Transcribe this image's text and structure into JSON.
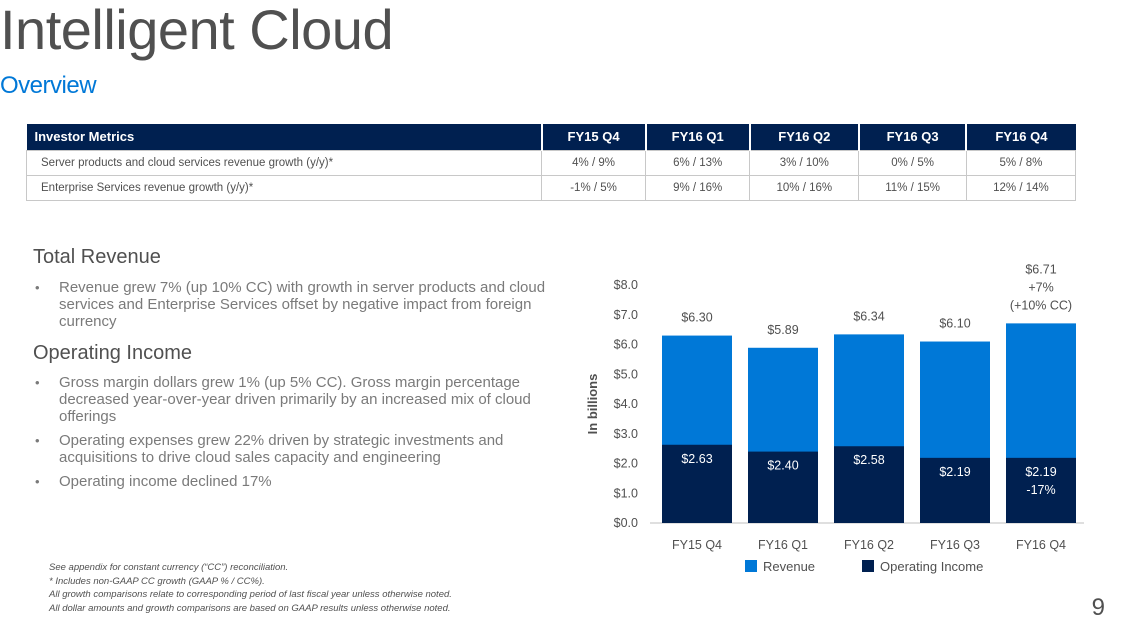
{
  "slide": {
    "title": "Intelligent Cloud",
    "subtitle": "Overview",
    "page_number": "9"
  },
  "metrics_table": {
    "headers": [
      "Investor Metrics",
      "FY15 Q4",
      "FY16 Q1",
      "FY16 Q2",
      "FY16 Q3",
      "FY16 Q4"
    ],
    "rows": [
      [
        "Server products and cloud services revenue growth (y/y)*",
        "4% / 9%",
        "6% / 13%",
        "3% / 10%",
        "0% / 5%",
        "5% / 8%"
      ],
      [
        "Enterprise Services revenue growth (y/y)*",
        "-1% / 5%",
        "9% / 16%",
        "10% / 16%",
        "11% / 15%",
        "12% / 14%"
      ]
    ]
  },
  "sections": [
    {
      "heading": "Total Revenue",
      "bullets": [
        "Revenue grew 7% (up 10% CC) with growth in server products and cloud services and Enterprise Services offset by negative impact from foreign currency"
      ]
    },
    {
      "heading": "Operating Income",
      "bullets": [
        "Gross margin dollars grew 1% (up 5% CC). Gross margin percentage decreased year-over-year driven primarily by an increased mix of cloud offerings",
        "Operating expenses grew 22% driven by strategic investments and acquisitions to drive cloud sales capacity and engineering",
        "Operating income declined 17%"
      ]
    }
  ],
  "footnotes": [
    "See appendix for constant currency (“CC”) reconciliation.",
    "* Includes non-GAAP CC growth (GAAP % / CC%).",
    "All growth comparisons relate to corresponding period of last fiscal year unless otherwise noted.",
    "All dollar amounts and growth comparisons are based on GAAP results unless otherwise noted."
  ],
  "chart_data": {
    "type": "bar",
    "categories": [
      "FY15 Q4",
      "FY16 Q1",
      "FY16 Q2",
      "FY16 Q3",
      "FY16 Q4"
    ],
    "series": [
      {
        "name": "Revenue",
        "values": [
          6.3,
          5.89,
          6.34,
          6.1,
          6.71
        ],
        "color": "#0078d7",
        "labels": [
          "$6.30",
          "$5.89",
          "$6.34",
          "$6.10",
          "$6.71"
        ]
      },
      {
        "name": "Operating Income",
        "values": [
          2.63,
          2.4,
          2.58,
          2.19,
          2.19
        ],
        "color": "#002050",
        "labels": [
          "$2.63",
          "$2.40",
          "$2.58",
          "$2.19",
          "$2.19"
        ]
      }
    ],
    "overlay": "Operating Income bar drawn over the base of the Revenue bar",
    "annotations": {
      "revenue_last_extra": [
        "+7%",
        "(+10% CC)"
      ],
      "income_last_extra": [
        "-17%"
      ]
    },
    "ylabel": "In billions",
    "yticks": [
      "$0.0",
      "$1.0",
      "$2.0",
      "$3.0",
      "$4.0",
      "$5.0",
      "$6.0",
      "$7.0",
      "$8.0"
    ],
    "ylim": [
      0,
      8
    ],
    "grid": false,
    "legend_position": "bottom"
  }
}
